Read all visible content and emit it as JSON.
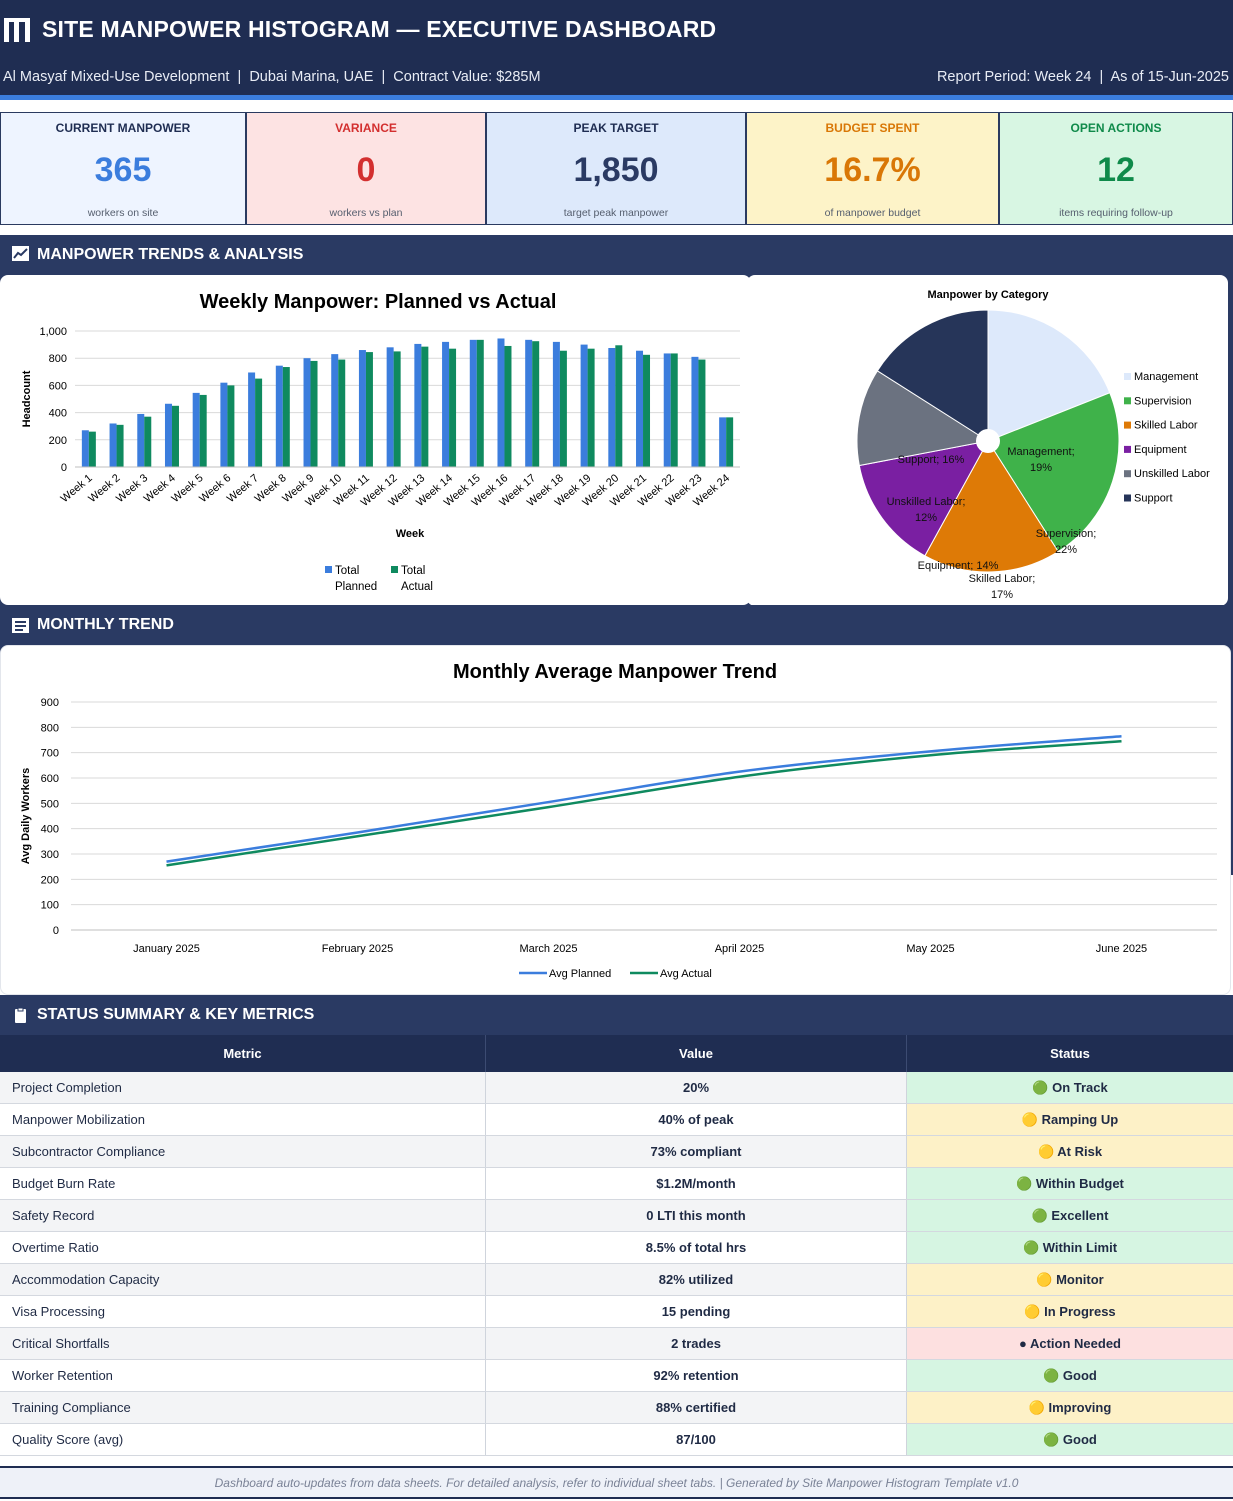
{
  "header": {
    "title": "SITE MANPOWER HISTOGRAM — EXECUTIVE DASHBOARD",
    "project_line": "Al Masyaf Mixed-Use Development  |  Dubai Marina, UAE  |  Contract Value: $285M",
    "report_line": "Report Period: Week 24  |  As of 15-Jun-2025"
  },
  "kpis": [
    {
      "label": "CURRENT MANPOWER",
      "value": "365",
      "caption": "workers on site",
      "bg": "#eef4ff",
      "label_color": "#1f2d52",
      "value_color": "#3b7ddd"
    },
    {
      "label": "VARIANCE",
      "value": "0",
      "caption": "workers vs plan",
      "bg": "#fde3e3",
      "label_color": "#d32f2f",
      "value_color": "#d32f2f"
    },
    {
      "label": "PEAK TARGET",
      "value": "1,850",
      "caption": "target peak manpower",
      "bg": "#dde9fb",
      "label_color": "#1f2d52",
      "value_color": "#2a3a63"
    },
    {
      "label": "BUDGET SPENT",
      "value": "16.7%",
      "caption": "of manpower budget",
      "bg": "#fdf3c8",
      "label_color": "#d97706",
      "value_color": "#d97706"
    },
    {
      "label": "OPEN ACTIONS",
      "value": "12",
      "caption": "items requiring follow-up",
      "bg": "#d8f6e3",
      "label_color": "#0f8a4a",
      "value_color": "#0f8a4a"
    }
  ],
  "sections": {
    "trends": "MANPOWER TRENDS & ANALYSIS",
    "monthly": "MONTHLY TREND",
    "status": "STATUS SUMMARY & KEY METRICS"
  },
  "chart_data": [
    {
      "type": "bar",
      "title": "Weekly Manpower: Planned vs Actual",
      "xlabel": "Week",
      "ylabel": "Headcount",
      "ylim": [
        0,
        1000
      ],
      "yticks": [
        "0",
        "200",
        "400",
        "600",
        "800",
        "1,000"
      ],
      "categories": [
        "Week 1",
        "Week 2",
        "Week 3",
        "Week 4",
        "Week 5",
        "Week 6",
        "Week 7",
        "Week 8",
        "Week 9",
        "Week 10",
        "Week 11",
        "Week 12",
        "Week 13",
        "Week 14",
        "Week 15",
        "Week 16",
        "Week 17",
        "Week 18",
        "Week 19",
        "Week 20",
        "Week 21",
        "Week 22",
        "Week 23",
        "Week 24"
      ],
      "series": [
        {
          "name": "Total Planned",
          "color": "#3b7ddd",
          "values": [
            270,
            320,
            390,
            465,
            545,
            620,
            695,
            745,
            800,
            830,
            860,
            880,
            905,
            920,
            935,
            945,
            935,
            920,
            900,
            875,
            855,
            835,
            810,
            365
          ]
        },
        {
          "name": "Total Actual",
          "color": "#0f8a5f",
          "values": [
            260,
            310,
            370,
            450,
            530,
            600,
            650,
            735,
            780,
            790,
            845,
            850,
            885,
            870,
            935,
            890,
            925,
            855,
            870,
            895,
            825,
            835,
            790,
            365
          ]
        }
      ],
      "legend": "bottom",
      "grid": true
    },
    {
      "type": "pie",
      "title": "Manpower by Category",
      "legend": "right",
      "slices": [
        {
          "name": "Management",
          "value": 19,
          "label": "Management;\n19%",
          "color": "#dde9fb"
        },
        {
          "name": "Supervision",
          "value": 22,
          "label": "Supervision;\n22%",
          "color": "#3fb24a"
        },
        {
          "name": "Skilled Labor",
          "value": 17,
          "label": "Skilled Labor;\n17%",
          "color": "#de7a06"
        },
        {
          "name": "Equipment",
          "value": 14,
          "label": "Equipment; 14%",
          "color": "#7a1fa2"
        },
        {
          "name": "Unskilled Labor",
          "value": 12,
          "label": "Unskilled Labor;\n12%",
          "color": "#6b7280"
        },
        {
          "name": "Support",
          "value": 16,
          "label": "Support; 16%",
          "color": "#263559"
        }
      ]
    },
    {
      "type": "line",
      "title": "Monthly Average Manpower Trend",
      "xlabel": "",
      "ylabel": "Avg Daily Workers",
      "ylim": [
        0,
        900
      ],
      "yticks": [
        "0",
        "100",
        "200",
        "300",
        "400",
        "500",
        "600",
        "700",
        "800",
        "900"
      ],
      "categories": [
        "January 2025",
        "February 2025",
        "March 2025",
        "April 2025",
        "May 2025",
        "June 2025"
      ],
      "series": [
        {
          "name": "Avg Planned",
          "color": "#3b7ddd",
          "values": [
            270,
            385,
            505,
            625,
            705,
            765
          ]
        },
        {
          "name": "Avg Actual",
          "color": "#0f8a5f",
          "values": [
            255,
            370,
            485,
            605,
            690,
            745
          ]
        }
      ],
      "legend": "bottom",
      "grid": true
    }
  ],
  "status_table": {
    "headers": [
      "Metric",
      "Value",
      "Status"
    ],
    "rows": [
      {
        "metric": "Project Completion",
        "value": "20%",
        "status": "🟢 On Track",
        "status_bg": "#d6f5e2"
      },
      {
        "metric": "Manpower Mobilization",
        "value": "40% of peak",
        "status": "🟡 Ramping Up",
        "status_bg": "#fdf1c7"
      },
      {
        "metric": "Subcontractor Compliance",
        "value": "73% compliant",
        "status": "🟡 At Risk",
        "status_bg": "#fdf1c7"
      },
      {
        "metric": "Budget Burn Rate",
        "value": "$1.2M/month",
        "status": "🟢 Within Budget",
        "status_bg": "#d6f5e2"
      },
      {
        "metric": "Safety Record",
        "value": "0 LTI this month",
        "status": "🟢 Excellent",
        "status_bg": "#d6f5e2"
      },
      {
        "metric": "Overtime Ratio",
        "value": "8.5% of total hrs",
        "status": "🟢 Within Limit",
        "status_bg": "#d6f5e2"
      },
      {
        "metric": "Accommodation Capacity",
        "value": "82% utilized",
        "status": "🟡 Monitor",
        "status_bg": "#fdf1c7"
      },
      {
        "metric": "Visa Processing",
        "value": "15 pending",
        "status": "🟡 In Progress",
        "status_bg": "#fdf1c7"
      },
      {
        "metric": "Critical Shortfalls",
        "value": "2 trades",
        "status": "● Action Needed",
        "status_bg": "#fde0e0"
      },
      {
        "metric": "Worker Retention",
        "value": "92% retention",
        "status": "🟢 Good",
        "status_bg": "#d6f5e2"
      },
      {
        "metric": "Training Compliance",
        "value": "88% certified",
        "status": "🟡 Improving",
        "status_bg": "#fdf1c7"
      },
      {
        "metric": "Quality Score (avg)",
        "value": "87/100",
        "status": "🟢 Good",
        "status_bg": "#d6f5e2"
      }
    ]
  },
  "footer": "Dashboard auto-updates from data sheets. For detailed analysis, refer to individual sheet tabs.  |  Generated by Site Manpower Histogram Template v1.0"
}
